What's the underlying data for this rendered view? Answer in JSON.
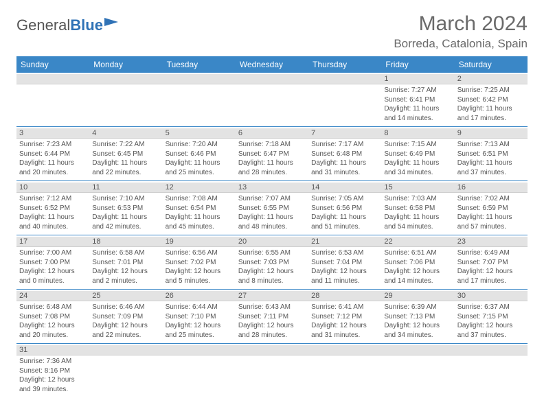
{
  "brand": {
    "part1": "General",
    "part2": "Blue"
  },
  "title": "March 2024",
  "location": "Borreda, Catalonia, Spain",
  "colors": {
    "header_bg": "#3a87c7",
    "header_fg": "#ffffff",
    "daynum_bg": "#e3e3e3",
    "week_border": "#3a87c7",
    "text": "#555555",
    "brand_blue": "#2f72b6"
  },
  "day_names": [
    "Sunday",
    "Monday",
    "Tuesday",
    "Wednesday",
    "Thursday",
    "Friday",
    "Saturday"
  ],
  "weeks": [
    [
      {
        "n": "",
        "sr": "",
        "ss": "",
        "dl": ""
      },
      {
        "n": "",
        "sr": "",
        "ss": "",
        "dl": ""
      },
      {
        "n": "",
        "sr": "",
        "ss": "",
        "dl": ""
      },
      {
        "n": "",
        "sr": "",
        "ss": "",
        "dl": ""
      },
      {
        "n": "",
        "sr": "",
        "ss": "",
        "dl": ""
      },
      {
        "n": "1",
        "sr": "Sunrise: 7:27 AM",
        "ss": "Sunset: 6:41 PM",
        "dl": "Daylight: 11 hours and 14 minutes."
      },
      {
        "n": "2",
        "sr": "Sunrise: 7:25 AM",
        "ss": "Sunset: 6:42 PM",
        "dl": "Daylight: 11 hours and 17 minutes."
      }
    ],
    [
      {
        "n": "3",
        "sr": "Sunrise: 7:23 AM",
        "ss": "Sunset: 6:44 PM",
        "dl": "Daylight: 11 hours and 20 minutes."
      },
      {
        "n": "4",
        "sr": "Sunrise: 7:22 AM",
        "ss": "Sunset: 6:45 PM",
        "dl": "Daylight: 11 hours and 22 minutes."
      },
      {
        "n": "5",
        "sr": "Sunrise: 7:20 AM",
        "ss": "Sunset: 6:46 PM",
        "dl": "Daylight: 11 hours and 25 minutes."
      },
      {
        "n": "6",
        "sr": "Sunrise: 7:18 AM",
        "ss": "Sunset: 6:47 PM",
        "dl": "Daylight: 11 hours and 28 minutes."
      },
      {
        "n": "7",
        "sr": "Sunrise: 7:17 AM",
        "ss": "Sunset: 6:48 PM",
        "dl": "Daylight: 11 hours and 31 minutes."
      },
      {
        "n": "8",
        "sr": "Sunrise: 7:15 AM",
        "ss": "Sunset: 6:49 PM",
        "dl": "Daylight: 11 hours and 34 minutes."
      },
      {
        "n": "9",
        "sr": "Sunrise: 7:13 AM",
        "ss": "Sunset: 6:51 PM",
        "dl": "Daylight: 11 hours and 37 minutes."
      }
    ],
    [
      {
        "n": "10",
        "sr": "Sunrise: 7:12 AM",
        "ss": "Sunset: 6:52 PM",
        "dl": "Daylight: 11 hours and 40 minutes."
      },
      {
        "n": "11",
        "sr": "Sunrise: 7:10 AM",
        "ss": "Sunset: 6:53 PM",
        "dl": "Daylight: 11 hours and 42 minutes."
      },
      {
        "n": "12",
        "sr": "Sunrise: 7:08 AM",
        "ss": "Sunset: 6:54 PM",
        "dl": "Daylight: 11 hours and 45 minutes."
      },
      {
        "n": "13",
        "sr": "Sunrise: 7:07 AM",
        "ss": "Sunset: 6:55 PM",
        "dl": "Daylight: 11 hours and 48 minutes."
      },
      {
        "n": "14",
        "sr": "Sunrise: 7:05 AM",
        "ss": "Sunset: 6:56 PM",
        "dl": "Daylight: 11 hours and 51 minutes."
      },
      {
        "n": "15",
        "sr": "Sunrise: 7:03 AM",
        "ss": "Sunset: 6:58 PM",
        "dl": "Daylight: 11 hours and 54 minutes."
      },
      {
        "n": "16",
        "sr": "Sunrise: 7:02 AM",
        "ss": "Sunset: 6:59 PM",
        "dl": "Daylight: 11 hours and 57 minutes."
      }
    ],
    [
      {
        "n": "17",
        "sr": "Sunrise: 7:00 AM",
        "ss": "Sunset: 7:00 PM",
        "dl": "Daylight: 12 hours and 0 minutes."
      },
      {
        "n": "18",
        "sr": "Sunrise: 6:58 AM",
        "ss": "Sunset: 7:01 PM",
        "dl": "Daylight: 12 hours and 2 minutes."
      },
      {
        "n": "19",
        "sr": "Sunrise: 6:56 AM",
        "ss": "Sunset: 7:02 PM",
        "dl": "Daylight: 12 hours and 5 minutes."
      },
      {
        "n": "20",
        "sr": "Sunrise: 6:55 AM",
        "ss": "Sunset: 7:03 PM",
        "dl": "Daylight: 12 hours and 8 minutes."
      },
      {
        "n": "21",
        "sr": "Sunrise: 6:53 AM",
        "ss": "Sunset: 7:04 PM",
        "dl": "Daylight: 12 hours and 11 minutes."
      },
      {
        "n": "22",
        "sr": "Sunrise: 6:51 AM",
        "ss": "Sunset: 7:06 PM",
        "dl": "Daylight: 12 hours and 14 minutes."
      },
      {
        "n": "23",
        "sr": "Sunrise: 6:49 AM",
        "ss": "Sunset: 7:07 PM",
        "dl": "Daylight: 12 hours and 17 minutes."
      }
    ],
    [
      {
        "n": "24",
        "sr": "Sunrise: 6:48 AM",
        "ss": "Sunset: 7:08 PM",
        "dl": "Daylight: 12 hours and 20 minutes."
      },
      {
        "n": "25",
        "sr": "Sunrise: 6:46 AM",
        "ss": "Sunset: 7:09 PM",
        "dl": "Daylight: 12 hours and 22 minutes."
      },
      {
        "n": "26",
        "sr": "Sunrise: 6:44 AM",
        "ss": "Sunset: 7:10 PM",
        "dl": "Daylight: 12 hours and 25 minutes."
      },
      {
        "n": "27",
        "sr": "Sunrise: 6:43 AM",
        "ss": "Sunset: 7:11 PM",
        "dl": "Daylight: 12 hours and 28 minutes."
      },
      {
        "n": "28",
        "sr": "Sunrise: 6:41 AM",
        "ss": "Sunset: 7:12 PM",
        "dl": "Daylight: 12 hours and 31 minutes."
      },
      {
        "n": "29",
        "sr": "Sunrise: 6:39 AM",
        "ss": "Sunset: 7:13 PM",
        "dl": "Daylight: 12 hours and 34 minutes."
      },
      {
        "n": "30",
        "sr": "Sunrise: 6:37 AM",
        "ss": "Sunset: 7:15 PM",
        "dl": "Daylight: 12 hours and 37 minutes."
      }
    ],
    [
      {
        "n": "31",
        "sr": "Sunrise: 7:36 AM",
        "ss": "Sunset: 8:16 PM",
        "dl": "Daylight: 12 hours and 39 minutes."
      },
      {
        "n": "",
        "sr": "",
        "ss": "",
        "dl": ""
      },
      {
        "n": "",
        "sr": "",
        "ss": "",
        "dl": ""
      },
      {
        "n": "",
        "sr": "",
        "ss": "",
        "dl": ""
      },
      {
        "n": "",
        "sr": "",
        "ss": "",
        "dl": ""
      },
      {
        "n": "",
        "sr": "",
        "ss": "",
        "dl": ""
      },
      {
        "n": "",
        "sr": "",
        "ss": "",
        "dl": ""
      }
    ]
  ]
}
